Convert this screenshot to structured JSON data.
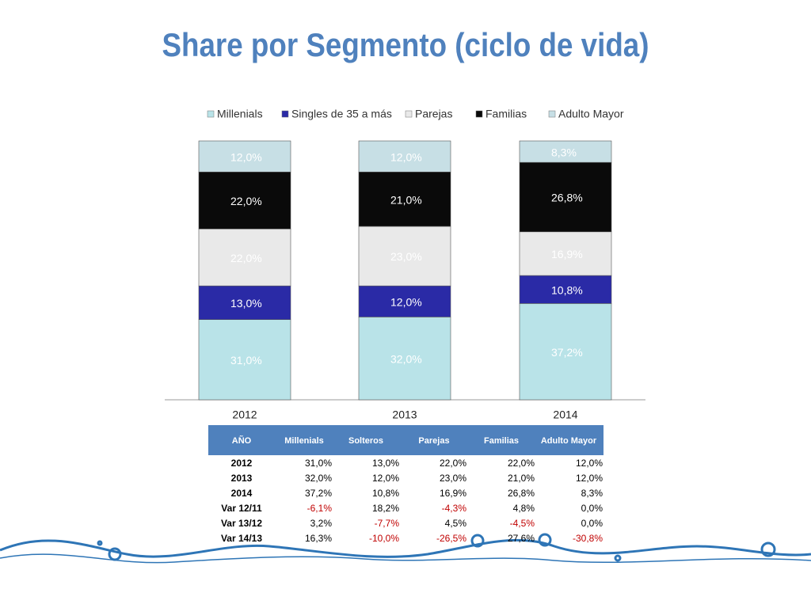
{
  "chart_data": {
    "type": "stacked-bar",
    "title": "Share por Segmento (ciclo de vida)",
    "categories": [
      "2012",
      "2013",
      "2014"
    ],
    "ylim": [
      0,
      100
    ],
    "series": [
      {
        "name": "Millenials",
        "color": "#b9e3e8",
        "values": [
          31.0,
          32.0,
          37.2
        ],
        "value_labels": [
          "31,0%",
          "32,0%",
          "37,2%"
        ]
      },
      {
        "name": "Singles de 35 a más",
        "color": "#2a2aa6",
        "values": [
          13.0,
          12.0,
          10.8
        ],
        "value_labels": [
          "13,0%",
          "12,0%",
          "10,8%"
        ]
      },
      {
        "name": "Parejas",
        "color": "#e9e9e9",
        "values": [
          22.0,
          23.0,
          16.9
        ],
        "value_labels": [
          "22,0%",
          "23,0%",
          "16,9%"
        ]
      },
      {
        "name": "Familias",
        "color": "#0a0a0a",
        "values": [
          22.0,
          21.0,
          26.8
        ],
        "value_labels": [
          "22,0%",
          "21,0%",
          "26,8%"
        ]
      },
      {
        "name": "Adulto Mayor",
        "color": "#c7dfe5",
        "values": [
          12.0,
          12.0,
          8.3
        ],
        "value_labels": [
          "12,0%",
          "12,0%",
          "8,3%"
        ]
      }
    ]
  },
  "table": {
    "header": [
      "AÑO",
      "Millenials",
      "Solteros",
      "Parejas",
      "Familias",
      "Adulto Mayor"
    ],
    "rows": [
      [
        "2012",
        "31,0%",
        "13,0%",
        "22,0%",
        "22,0%",
        "12,0%"
      ],
      [
        "2013",
        "32,0%",
        "12,0%",
        "23,0%",
        "21,0%",
        "12,0%"
      ],
      [
        "2014",
        "37,2%",
        "10,8%",
        "16,9%",
        "26,8%",
        "8,3%"
      ],
      [
        "Var 12/11",
        "-6,1%",
        "18,2%",
        "-4,3%",
        "4,8%",
        "0,0%"
      ],
      [
        "Var 13/12",
        "3,2%",
        "-7,7%",
        "4,5%",
        "-4,5%",
        "0,0%"
      ],
      [
        "Var 14/13",
        "16,3%",
        "-10,0%",
        "-26,5%",
        "27,6%",
        "-30,8%"
      ]
    ]
  }
}
